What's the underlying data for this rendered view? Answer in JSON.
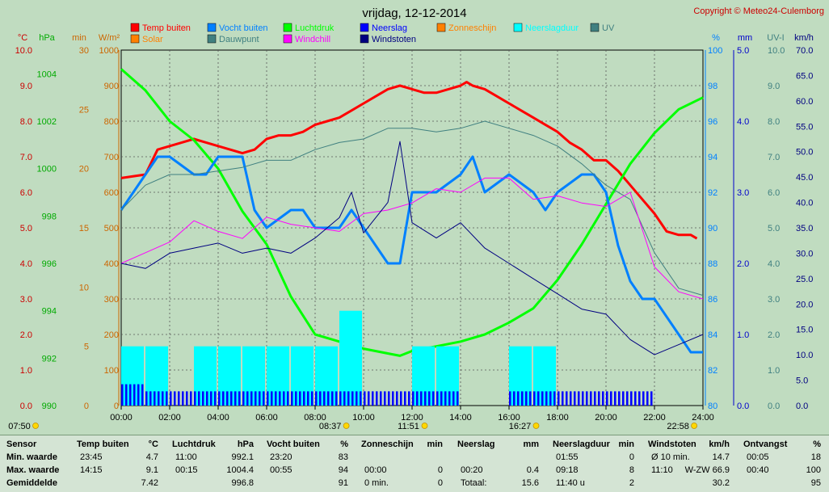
{
  "chart_data": {
    "type": "line",
    "title": "vrijdag, 12-12-2014",
    "copyright": "Copyright © Meteo24-Culemborg",
    "x_ticks": [
      "00:00",
      "02:00",
      "04:00",
      "06:00",
      "08:00",
      "10:00",
      "12:00",
      "14:00",
      "16:00",
      "18:00",
      "20:00",
      "22:00",
      "24:00"
    ],
    "x_range_hours": [
      0,
      24
    ],
    "grid": true,
    "legend_position": "top",
    "legend": [
      {
        "name": "Temp buiten",
        "color": "#ff0000"
      },
      {
        "name": "Solar",
        "color": "#ff8000"
      },
      {
        "name": "Vocht buiten",
        "color": "#0080ff"
      },
      {
        "name": "Dauwpunt",
        "color": "#408080"
      },
      {
        "name": "Luchtdruk",
        "color": "#00ff00"
      },
      {
        "name": "Windchill",
        "color": "#ff00ff"
      },
      {
        "name": "Neerslag",
        "color": "#0000ff"
      },
      {
        "name": "Windstoten",
        "color": "#000080"
      },
      {
        "name": "Zonneschijn",
        "color": "#ff8000"
      },
      {
        "name": "Neerslagduur",
        "color": "#00ffff"
      },
      {
        "name": "UV",
        "color": "#408080"
      }
    ],
    "axes": {
      "temp": {
        "unit": "°C",
        "range": [
          0,
          10
        ],
        "ticks": [
          "0.0",
          "1.0",
          "2.0",
          "3.0",
          "4.0",
          "5.0",
          "6.0",
          "7.0",
          "8.0",
          "9.0",
          "10.0"
        ],
        "color": "#cc0000"
      },
      "pressure": {
        "unit": "hPa",
        "range": [
          990,
          1005
        ],
        "ticks": [
          "990",
          "992",
          "994",
          "996",
          "998",
          "1000",
          "1002",
          "1004"
        ],
        "color": "#00aa00"
      },
      "minutes": {
        "unit": "min",
        "range": [
          0,
          30
        ],
        "ticks": [
          "0",
          "5",
          "10",
          "15",
          "20",
          "25",
          "30"
        ],
        "color": "#cc6600"
      },
      "solar": {
        "unit": "W/m²",
        "range": [
          0,
          1000
        ],
        "ticks": [
          "0",
          "100",
          "200",
          "300",
          "400",
          "500",
          "600",
          "700",
          "800",
          "900",
          "1000"
        ],
        "color": "#cc6600"
      },
      "humidity": {
        "unit": "%",
        "range": [
          80,
          100
        ],
        "ticks": [
          "80",
          "82",
          "84",
          "86",
          "88",
          "90",
          "92",
          "94",
          "96",
          "98",
          "100"
        ],
        "color": "#0080ff"
      },
      "rain": {
        "unit": "mm",
        "range": [
          0,
          5
        ],
        "ticks": [
          "0.0",
          "1.0",
          "2.0",
          "3.0",
          "4.0",
          "5.0"
        ],
        "color": "#0000cc"
      },
      "uv": {
        "unit": "UV-I",
        "range": [
          0,
          10
        ],
        "ticks": [
          "0.0",
          "1.0",
          "2.0",
          "3.0",
          "4.0",
          "5.0",
          "6.0",
          "7.0",
          "8.0",
          "9.0",
          "10.0"
        ],
        "color": "#408080"
      },
      "wind": {
        "unit": "km/h",
        "range": [
          0,
          70
        ],
        "ticks": [
          "0.0",
          "5.0",
          "10.0",
          "15.0",
          "20.0",
          "25.0",
          "30.0",
          "35.0",
          "40.0",
          "45.0",
          "50.0",
          "55.0",
          "60.0",
          "65.0",
          "70.0"
        ],
        "color": "#000080"
      }
    },
    "series": [
      {
        "name": "Temp buiten",
        "axis": "temp",
        "x": [
          0,
          1,
          1.5,
          2,
          2.5,
          3,
          3.5,
          4,
          4.5,
          5,
          5.5,
          6,
          6.5,
          7,
          7.5,
          8,
          8.5,
          9,
          9.5,
          10,
          10.5,
          11,
          11.5,
          12,
          12.5,
          13,
          13.5,
          14,
          14.25,
          14.5,
          15,
          15.5,
          16,
          16.5,
          17,
          17.5,
          18,
          18.5,
          19,
          19.5,
          20,
          20.5,
          21,
          21.5,
          22,
          22.5,
          23,
          23.5,
          23.75
        ],
        "values": [
          6.4,
          6.5,
          7.2,
          7.3,
          7.4,
          7.5,
          7.4,
          7.3,
          7.2,
          7.1,
          7.2,
          7.5,
          7.6,
          7.6,
          7.7,
          7.9,
          8.0,
          8.1,
          8.3,
          8.5,
          8.7,
          8.9,
          9.0,
          8.9,
          8.8,
          8.8,
          8.9,
          9.0,
          9.1,
          9.0,
          8.9,
          8.7,
          8.5,
          8.3,
          8.1,
          7.9,
          7.7,
          7.4,
          7.2,
          6.9,
          6.9,
          6.6,
          6.2,
          5.8,
          5.4,
          4.9,
          4.8,
          4.8,
          4.7
        ]
      },
      {
        "name": "Luchtdruk",
        "axis": "pressure",
        "x": [
          0,
          1,
          2,
          3,
          4,
          5,
          6,
          7,
          8,
          9,
          10,
          11,
          11.5,
          12,
          13,
          14,
          15,
          16,
          17,
          18,
          19,
          20,
          21,
          22,
          23,
          24
        ],
        "values": [
          1004.2,
          1003.3,
          1002.0,
          1001.2,
          1000.0,
          998.2,
          996.8,
          994.6,
          993.0,
          992.7,
          992.4,
          992.2,
          992.1,
          992.3,
          992.5,
          992.7,
          993.0,
          993.5,
          994.1,
          995.3,
          996.8,
          998.5,
          1000.2,
          1001.5,
          1002.5,
          1003.0
        ]
      },
      {
        "name": "Vocht buiten",
        "axis": "humidity",
        "x": [
          0,
          0.5,
          1,
          1.5,
          2,
          3,
          3.5,
          4,
          5,
          5.5,
          6,
          7,
          7.5,
          8,
          9,
          9.5,
          10,
          11,
          11.5,
          12,
          13,
          14,
          14.5,
          15,
          16,
          17,
          17.5,
          18,
          19,
          19.5,
          20,
          20.5,
          21,
          21.5,
          22,
          23,
          23.5,
          24
        ],
        "values": [
          91,
          92,
          93,
          94,
          94,
          93,
          93,
          94,
          94,
          91,
          90,
          91,
          91,
          90,
          90,
          91,
          90,
          88,
          88,
          92,
          92,
          93,
          94,
          92,
          93,
          92,
          91,
          92,
          93,
          93,
          92,
          89,
          87,
          86,
          86,
          84,
          83,
          83
        ]
      },
      {
        "name": "Dauwpunt",
        "axis": "temp",
        "x": [
          0,
          1,
          2,
          3,
          4,
          5,
          6,
          7,
          8,
          9,
          10,
          11,
          12,
          13,
          14,
          15,
          16,
          17,
          18,
          19,
          20,
          21,
          22,
          23,
          24
        ],
        "values": [
          5.5,
          6.2,
          6.5,
          6.5,
          6.6,
          6.7,
          6.9,
          6.9,
          7.2,
          7.4,
          7.5,
          7.8,
          7.8,
          7.7,
          7.8,
          8.0,
          7.8,
          7.6,
          7.3,
          6.8,
          6.2,
          5.8,
          4.3,
          3.3,
          3.1
        ]
      },
      {
        "name": "Windchill",
        "axis": "temp",
        "x": [
          0,
          1,
          2,
          3,
          4,
          5,
          6,
          7,
          8,
          9,
          10,
          11,
          12,
          13,
          14,
          15,
          16,
          17,
          18,
          19,
          20,
          21,
          22,
          23,
          24
        ],
        "values": [
          4.0,
          4.3,
          4.6,
          5.2,
          4.9,
          4.7,
          5.3,
          5.1,
          5.0,
          4.9,
          5.4,
          5.5,
          5.7,
          6.1,
          6.0,
          6.4,
          6.4,
          5.8,
          5.9,
          5.7,
          5.6,
          6.0,
          3.9,
          3.2,
          3.0
        ]
      },
      {
        "name": "Windstoten",
        "axis": "wind",
        "x": [
          0,
          1,
          2,
          3,
          4,
          5,
          6,
          7,
          8,
          9,
          9.5,
          10,
          11,
          11.5,
          12,
          13,
          14,
          15,
          16,
          17,
          18,
          19,
          20,
          21,
          22,
          23,
          24
        ],
        "values": [
          28,
          27,
          30,
          31,
          32,
          30,
          31,
          30,
          33,
          37,
          42,
          34,
          40,
          52,
          36,
          33,
          36,
          31,
          28,
          25,
          22,
          19,
          18,
          13,
          10,
          12,
          14
        ]
      },
      {
        "name": "Neerslagduur",
        "axis": "minutes",
        "x": [
          0,
          1,
          2,
          3,
          4,
          5,
          6,
          7,
          8,
          9,
          10,
          11,
          12,
          13,
          14,
          15,
          16,
          17,
          18,
          19,
          20,
          21,
          22,
          23,
          24
        ],
        "values": [
          5,
          5,
          0,
          5,
          5,
          5,
          5,
          5,
          5,
          8,
          0,
          0,
          5,
          5,
          0,
          0,
          5,
          5,
          0,
          0,
          0,
          0,
          0,
          0,
          0
        ]
      },
      {
        "name": "Neerslag",
        "axis": "rain",
        "x": [
          0,
          1,
          2,
          3,
          4,
          5,
          6,
          7,
          8,
          9,
          10,
          11,
          12,
          13,
          14,
          15,
          16,
          17,
          18,
          19,
          20,
          21,
          22,
          23,
          24
        ],
        "values": [
          0.3,
          0.2,
          0.2,
          0.2,
          0.2,
          0.2,
          0.2,
          0.2,
          0.2,
          0.2,
          0.2,
          0.2,
          0.2,
          0.2,
          0,
          0,
          0.2,
          0.2,
          0.2,
          0.2,
          0.2,
          0.2,
          0,
          0,
          0
        ]
      }
    ],
    "sun_events": [
      {
        "label": "07:50",
        "hour": 7.83
      },
      {
        "label": "08:37",
        "hour": 8.62
      },
      {
        "label": "11:51",
        "hour": 11.85
      },
      {
        "label": "16:27",
        "hour": 16.45
      },
      {
        "label": "22:58",
        "hour": 22.97
      }
    ]
  },
  "stats": {
    "headers": [
      {
        "label": "Sensor",
        "unit": ""
      },
      {
        "label": "Temp buiten",
        "unit": "°C"
      },
      {
        "label": "Luchtdruk",
        "unit": "hPa"
      },
      {
        "label": "Vocht buiten",
        "unit": "%"
      },
      {
        "label": "Zonneschijn",
        "unit": "min"
      },
      {
        "label": "Neerslag",
        "unit": "mm"
      },
      {
        "label": "Neerslagduur",
        "unit": "min"
      },
      {
        "label": "Windstoten",
        "unit": "km/h"
      },
      {
        "label": "Ontvangst",
        "unit": "%"
      }
    ],
    "rows": [
      {
        "label": "Min. waarde",
        "cells": [
          [
            "23:45",
            "4.7"
          ],
          [
            "11:00",
            "992.1"
          ],
          [
            "23:20",
            "83"
          ],
          [
            "",
            ""
          ],
          [
            "",
            ""
          ],
          [
            "01:55",
            "0"
          ],
          [
            "Ø 10 min.",
            "14.7"
          ],
          [
            "00:05",
            "18"
          ]
        ]
      },
      {
        "label": "Max. waarde",
        "cells": [
          [
            "14:15",
            "9.1"
          ],
          [
            "00:15",
            "1004.4"
          ],
          [
            "00:55",
            "94"
          ],
          [
            "00:00",
            "0"
          ],
          [
            "00:20",
            "0.4"
          ],
          [
            "09:18",
            "8"
          ],
          [
            "11:10",
            "W-ZW 66.9"
          ],
          [
            "00:40",
            "100"
          ]
        ]
      },
      {
        "label": "Gemiddelde",
        "cells": [
          [
            "",
            "7.42"
          ],
          [
            "",
            "996.8"
          ],
          [
            "",
            "91"
          ],
          [
            "0 min.",
            "0"
          ],
          [
            "Totaal:",
            "15.6"
          ],
          [
            "11:40 u",
            "2"
          ],
          [
            "",
            "30.2"
          ],
          [
            "",
            "95"
          ]
        ]
      }
    ]
  }
}
